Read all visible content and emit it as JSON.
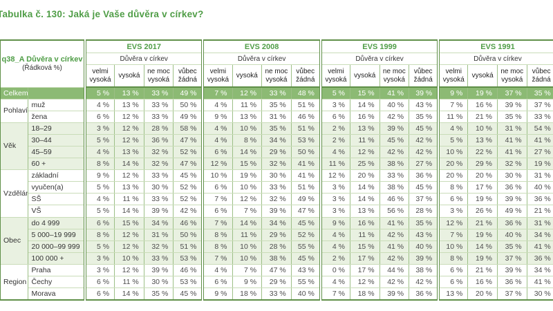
{
  "title": "Tabulka č. 130: Jaká je Vaše důvěra v církev?",
  "colors": {
    "accent": "#4f9d46",
    "frame_border": "#5f8f48",
    "celkem_row_bg": "#8cba74",
    "light_row_bg": "#e9f1e1",
    "value_text": "#4c4c4c"
  },
  "table": {
    "corner": {
      "title": "q38_A Důvěra v církev",
      "note": "(Řádková %)"
    },
    "unit": "%",
    "groups": [
      {
        "label": "EVS 2017",
        "subtitle": "Důvěra v církev"
      },
      {
        "label": "EVS 2008",
        "subtitle": "Důvěra v církev"
      },
      {
        "label": "EVS 1999",
        "subtitle": "Důvěra v církev"
      },
      {
        "label": "EVS 1991",
        "subtitle": "Důvěra v církev"
      }
    ],
    "columns": [
      "velmi vysoká",
      "vysoká",
      "ne moc vysoká",
      "vůbec žádná"
    ],
    "row_groups": [
      {
        "category": "Celkem",
        "shade": "dark",
        "rows": [
          {
            "label": "",
            "values": [
              [
                5,
                13,
                33,
                49
              ],
              [
                7,
                12,
                33,
                48
              ],
              [
                5,
                15,
                41,
                39
              ],
              [
                9,
                19,
                37,
                35
              ]
            ]
          }
        ]
      },
      {
        "category": "Pohlaví",
        "shade": "white",
        "rows": [
          {
            "label": "muž",
            "values": [
              [
                4,
                13,
                33,
                50
              ],
              [
                4,
                11,
                35,
                51
              ],
              [
                3,
                14,
                40,
                43
              ],
              [
                7,
                16,
                39,
                37
              ]
            ]
          },
          {
            "label": "žena",
            "values": [
              [
                6,
                12,
                33,
                49
              ],
              [
                9,
                13,
                31,
                46
              ],
              [
                6,
                16,
                42,
                35
              ],
              [
                11,
                21,
                35,
                33
              ]
            ]
          }
        ]
      },
      {
        "category": "Věk",
        "shade": "light",
        "rows": [
          {
            "label": "18–29",
            "values": [
              [
                3,
                12,
                28,
                58
              ],
              [
                4,
                10,
                35,
                51
              ],
              [
                2,
                13,
                39,
                45
              ],
              [
                4,
                10,
                31,
                54
              ]
            ]
          },
          {
            "label": "30–44",
            "values": [
              [
                5,
                12,
                36,
                47
              ],
              [
                4,
                8,
                34,
                53
              ],
              [
                2,
                11,
                45,
                42
              ],
              [
                5,
                13,
                41,
                41
              ]
            ]
          },
          {
            "label": "45–59",
            "values": [
              [
                4,
                13,
                32,
                52
              ],
              [
                6,
                14,
                29,
                50
              ],
              [
                4,
                12,
                42,
                42
              ],
              [
                10,
                22,
                41,
                27
              ]
            ]
          },
          {
            "label": "60 +",
            "values": [
              [
                8,
                14,
                32,
                47
              ],
              [
                12,
                15,
                32,
                41
              ],
              [
                11,
                25,
                38,
                27
              ],
              [
                20,
                29,
                32,
                19
              ]
            ]
          }
        ]
      },
      {
        "category": "Vzdělání",
        "shade": "white",
        "rows": [
          {
            "label": "základní",
            "values": [
              [
                9,
                12,
                33,
                45
              ],
              [
                10,
                19,
                30,
                41
              ],
              [
                12,
                20,
                33,
                36
              ],
              [
                20,
                20,
                30,
                31
              ]
            ]
          },
          {
            "label": "vyučen(a)",
            "values": [
              [
                5,
                13,
                30,
                52
              ],
              [
                6,
                10,
                33,
                51
              ],
              [
                3,
                14,
                38,
                45
              ],
              [
                8,
                17,
                36,
                40
              ]
            ]
          },
          {
            "label": "SŠ",
            "values": [
              [
                4,
                11,
                33,
                52
              ],
              [
                7,
                12,
                32,
                49
              ],
              [
                3,
                14,
                46,
                37
              ],
              [
                6,
                19,
                39,
                36
              ]
            ]
          },
          {
            "label": "VŠ",
            "values": [
              [
                5,
                14,
                39,
                42
              ],
              [
                6,
                7,
                39,
                47
              ],
              [
                3,
                13,
                56,
                28
              ],
              [
                3,
                26,
                49,
                21
              ]
            ]
          }
        ]
      },
      {
        "category": "Obec",
        "shade": "light",
        "rows": [
          {
            "label": "do 4 999",
            "values": [
              [
                6,
                15,
                34,
                46
              ],
              [
                7,
                14,
                34,
                45
              ],
              [
                9,
                16,
                41,
                35
              ],
              [
                12,
                21,
                36,
                31
              ]
            ]
          },
          {
            "label": "5 000–19 999",
            "values": [
              [
                8,
                12,
                31,
                50
              ],
              [
                8,
                11,
                29,
                52
              ],
              [
                4,
                11,
                42,
                43
              ],
              [
                7,
                19,
                40,
                34
              ]
            ]
          },
          {
            "label": "20 000–99 999",
            "values": [
              [
                5,
                12,
                32,
                51
              ],
              [
                8,
                10,
                28,
                55
              ],
              [
                4,
                15,
                41,
                40
              ],
              [
                10,
                14,
                35,
                41
              ]
            ]
          },
          {
            "label": "100 000 +",
            "values": [
              [
                3,
                10,
                33,
                53
              ],
              [
                7,
                10,
                38,
                45
              ],
              [
                2,
                17,
                42,
                39
              ],
              [
                8,
                19,
                37,
                36
              ]
            ]
          }
        ]
      },
      {
        "category": "Region",
        "shade": "white",
        "rows": [
          {
            "label": "Praha",
            "values": [
              [
                3,
                12,
                39,
                46
              ],
              [
                4,
                7,
                47,
                43
              ],
              [
                0,
                17,
                44,
                38
              ],
              [
                6,
                21,
                39,
                34
              ]
            ]
          },
          {
            "label": "Čechy",
            "values": [
              [
                6,
                11,
                30,
                53
              ],
              [
                6,
                9,
                29,
                55
              ],
              [
                4,
                12,
                42,
                42
              ],
              [
                6,
                16,
                36,
                41
              ]
            ]
          },
          {
            "label": "Morava",
            "values": [
              [
                6,
                14,
                35,
                45
              ],
              [
                9,
                18,
                33,
                40
              ],
              [
                7,
                18,
                39,
                36
              ],
              [
                13,
                20,
                37,
                30
              ]
            ]
          }
        ]
      }
    ]
  }
}
